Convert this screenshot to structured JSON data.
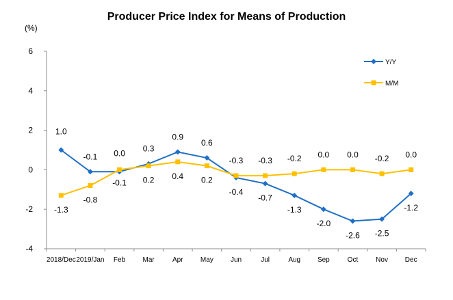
{
  "chart_data": {
    "type": "line",
    "title": "Producer Price Index for Means of Production",
    "ylabel": "(%)",
    "xlabel": "",
    "ylim": [
      -4,
      6
    ],
    "yticks": [
      6,
      4,
      2,
      0,
      -2,
      -4
    ],
    "categories": [
      "2018/Dec",
      "2019/Jan",
      "Feb",
      "Mar",
      "Apr",
      "May",
      "Jun",
      "Jul",
      "Aug",
      "Sep",
      "Oct",
      "Nov",
      "Dec"
    ],
    "grid": false,
    "legend_position": "top-right",
    "series": [
      {
        "name": "Y/Y",
        "color": "#1f6fc5",
        "marker": "diamond",
        "values": [
          1.0,
          -0.1,
          -0.1,
          0.3,
          0.9,
          0.6,
          -0.4,
          -0.7,
          -1.3,
          -2.0,
          -2.6,
          -2.5,
          -1.2
        ],
        "labels": [
          "1.0",
          "-0.1",
          "-0.1",
          "0.3",
          "0.9",
          "0.6",
          "-0.4",
          "-0.7",
          "-1.3",
          "-2.0",
          "-2.6",
          "-2.5",
          "-1.2"
        ]
      },
      {
        "name": "M/M",
        "color": "#ffc000",
        "marker": "square",
        "values": [
          -1.3,
          -0.8,
          0.0,
          0.2,
          0.4,
          0.2,
          -0.3,
          -0.3,
          -0.2,
          0.0,
          0.0,
          -0.2,
          0.0
        ],
        "labels": [
          "-1.3",
          "-0.8",
          "0.0",
          "0.2",
          "0.4",
          "0.2",
          "-0.3",
          "-0.3",
          "-0.2",
          "0.0",
          "0.0",
          "-0.2",
          "0.0"
        ]
      }
    ]
  }
}
